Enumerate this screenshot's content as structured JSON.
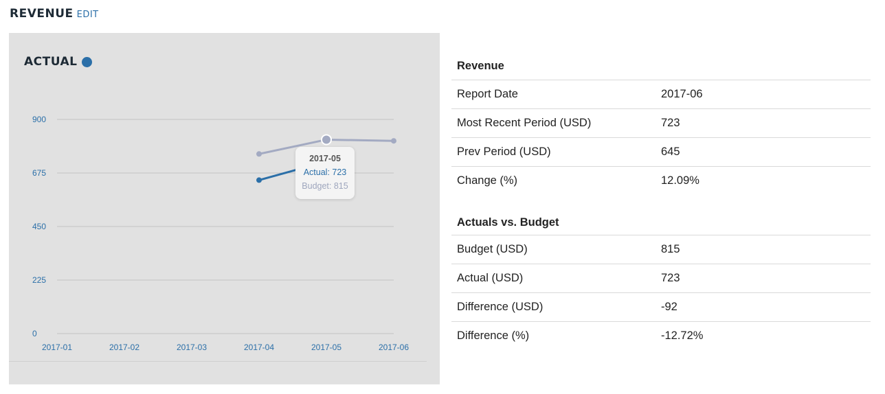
{
  "header": {
    "title": "REVENUE",
    "edit_label": "EDIT"
  },
  "legend": {
    "label": "ACTUAL",
    "dot_color": "#2b6fa8"
  },
  "chart_data": {
    "type": "line",
    "categories": [
      "2017-01",
      "2017-02",
      "2017-03",
      "2017-04",
      "2017-05",
      "2017-06"
    ],
    "series": [
      {
        "name": "Actual",
        "color": "#2b6fa8",
        "values": [
          null,
          null,
          null,
          645,
          723,
          null
        ]
      },
      {
        "name": "Budget",
        "color": "#a3aac2",
        "values": [
          null,
          null,
          null,
          755,
          815,
          810
        ]
      }
    ],
    "yticks": [
      "900",
      "675",
      "450",
      "225",
      "0"
    ],
    "ylim": [
      0,
      900
    ],
    "grid": true,
    "tooltip": {
      "title": "2017-05",
      "actual": "Actual: 723",
      "budget": "Budget: 815"
    }
  },
  "revenue_table": {
    "heading": "Revenue",
    "rows": [
      {
        "label": "Report Date",
        "value": "2017-06"
      },
      {
        "label": "Most Recent Period (USD)",
        "value": "723"
      },
      {
        "label": "Prev Period (USD)",
        "value": "645"
      },
      {
        "label": "Change (%)",
        "value": "12.09%"
      }
    ]
  },
  "budget_table": {
    "heading": "Actuals vs. Budget",
    "rows": [
      {
        "label": "Budget (USD)",
        "value": "815"
      },
      {
        "label": "Actual (USD)",
        "value": "723"
      },
      {
        "label": "Difference (USD)",
        "value": "-92"
      },
      {
        "label": "Difference (%)",
        "value": "-12.72%"
      }
    ]
  }
}
